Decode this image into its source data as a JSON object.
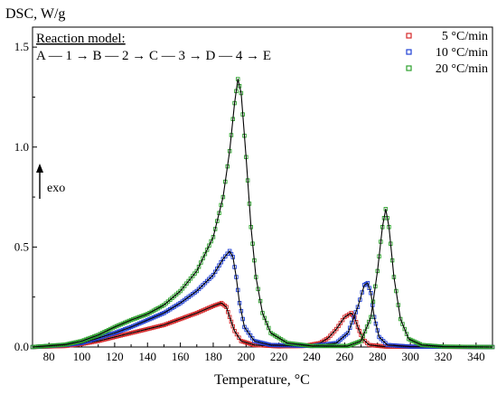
{
  "chart_data": {
    "type": "line",
    "title": "",
    "ylabel": "DSC, W/g",
    "xlabel": "Temperature, °C",
    "xlim": [
      70,
      350
    ],
    "ylim": [
      0,
      1.6
    ],
    "x_ticks": [
      80,
      100,
      120,
      140,
      160,
      180,
      200,
      220,
      240,
      260,
      280,
      300,
      320,
      340
    ],
    "y_ticks": [
      0.0,
      0.5,
      1.0,
      1.5
    ],
    "y_tick_labels": [
      "0.0",
      "0.5",
      "1.0",
      "1.5"
    ],
    "grid": false,
    "legend_position": "top-right",
    "annotations": {
      "reaction_model_title": "Reaction model:",
      "reaction_model_scheme": "A — 1 → B — 2 → C — 3 → D — 4 → E",
      "exo_label": "exo"
    },
    "series": [
      {
        "name": "5 °C/min",
        "color": "#d62728",
        "marker": "square-open",
        "points": [
          [
            70,
            0.0
          ],
          [
            90,
            0.005
          ],
          [
            100,
            0.015
          ],
          [
            110,
            0.03
          ],
          [
            120,
            0.05
          ],
          [
            130,
            0.07
          ],
          [
            140,
            0.09
          ],
          [
            150,
            0.11
          ],
          [
            160,
            0.14
          ],
          [
            170,
            0.17
          ],
          [
            180,
            0.205
          ],
          [
            185,
            0.22
          ],
          [
            188,
            0.2
          ],
          [
            190,
            0.15
          ],
          [
            193,
            0.08
          ],
          [
            197,
            0.03
          ],
          [
            205,
            0.01
          ],
          [
            220,
            0.003
          ],
          [
            235,
            0.005
          ],
          [
            245,
            0.02
          ],
          [
            250,
            0.045
          ],
          [
            255,
            0.09
          ],
          [
            260,
            0.15
          ],
          [
            264,
            0.17
          ],
          [
            266,
            0.15
          ],
          [
            268,
            0.1
          ],
          [
            271,
            0.04
          ],
          [
            275,
            0.01
          ],
          [
            285,
            0.002
          ],
          [
            350,
            0.0
          ]
        ]
      },
      {
        "name": "10 °C/min",
        "color": "#1f3fd4",
        "marker": "square-open",
        "points": [
          [
            70,
            0.0
          ],
          [
            90,
            0.01
          ],
          [
            100,
            0.02
          ],
          [
            110,
            0.045
          ],
          [
            120,
            0.07
          ],
          [
            130,
            0.1
          ],
          [
            140,
            0.135
          ],
          [
            150,
            0.17
          ],
          [
            160,
            0.22
          ],
          [
            170,
            0.28
          ],
          [
            180,
            0.36
          ],
          [
            186,
            0.44
          ],
          [
            190,
            0.48
          ],
          [
            192,
            0.45
          ],
          [
            194,
            0.35
          ],
          [
            196,
            0.22
          ],
          [
            199,
            0.1
          ],
          [
            205,
            0.03
          ],
          [
            215,
            0.01
          ],
          [
            240,
            0.005
          ],
          [
            255,
            0.02
          ],
          [
            262,
            0.07
          ],
          [
            268,
            0.2
          ],
          [
            272,
            0.31
          ],
          [
            274,
            0.32
          ],
          [
            276,
            0.27
          ],
          [
            278,
            0.15
          ],
          [
            281,
            0.05
          ],
          [
            286,
            0.01
          ],
          [
            300,
            0.002
          ],
          [
            350,
            0.0
          ]
        ]
      },
      {
        "name": "20 °C/min",
        "color": "#2ca02c",
        "marker": "square-open",
        "points": [
          [
            70,
            0.0
          ],
          [
            90,
            0.012
          ],
          [
            100,
            0.03
          ],
          [
            110,
            0.06
          ],
          [
            120,
            0.1
          ],
          [
            130,
            0.135
          ],
          [
            140,
            0.165
          ],
          [
            150,
            0.21
          ],
          [
            160,
            0.28
          ],
          [
            170,
            0.38
          ],
          [
            180,
            0.55
          ],
          [
            186,
            0.75
          ],
          [
            190,
            0.98
          ],
          [
            193,
            1.22
          ],
          [
            195,
            1.34
          ],
          [
            197,
            1.27
          ],
          [
            200,
            0.95
          ],
          [
            203,
            0.6
          ],
          [
            206,
            0.35
          ],
          [
            210,
            0.17
          ],
          [
            215,
            0.07
          ],
          [
            225,
            0.02
          ],
          [
            240,
            0.005
          ],
          [
            262,
            0.005
          ],
          [
            270,
            0.03
          ],
          [
            276,
            0.15
          ],
          [
            280,
            0.38
          ],
          [
            283,
            0.6
          ],
          [
            285,
            0.69
          ],
          [
            287,
            0.6
          ],
          [
            290,
            0.35
          ],
          [
            294,
            0.14
          ],
          [
            299,
            0.04
          ],
          [
            307,
            0.01
          ],
          [
            320,
            0.002
          ],
          [
            350,
            0.0
          ]
        ]
      }
    ]
  }
}
